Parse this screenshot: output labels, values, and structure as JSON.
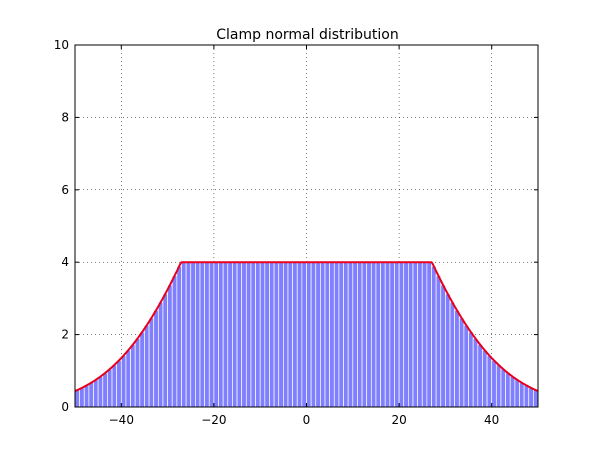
{
  "chart_data": {
    "type": "bar",
    "title": "Clamp normal distribution",
    "xlabel": "",
    "ylabel": "",
    "xlim": [
      -50,
      50
    ],
    "ylim": [
      0,
      10
    ],
    "xticks": [
      -40,
      -20,
      0,
      20,
      40
    ],
    "yticks": [
      0,
      2,
      4,
      6,
      8,
      10
    ],
    "xtick_labels": [
      "−40",
      "−20",
      "0",
      "20",
      "40"
    ],
    "ytick_labels": [
      "0",
      "2",
      "4",
      "6",
      "8",
      "10"
    ],
    "grid": true,
    "bin_width": 1,
    "curve": {
      "type": "clamped-normal",
      "mu": 0,
      "sigma": 20,
      "peak": 10,
      "clamp": 4
    },
    "colors": {
      "bars": "#8080ff",
      "bar_edge": "#ffffff",
      "curve": "#e8001c",
      "grid": "#000000"
    }
  }
}
